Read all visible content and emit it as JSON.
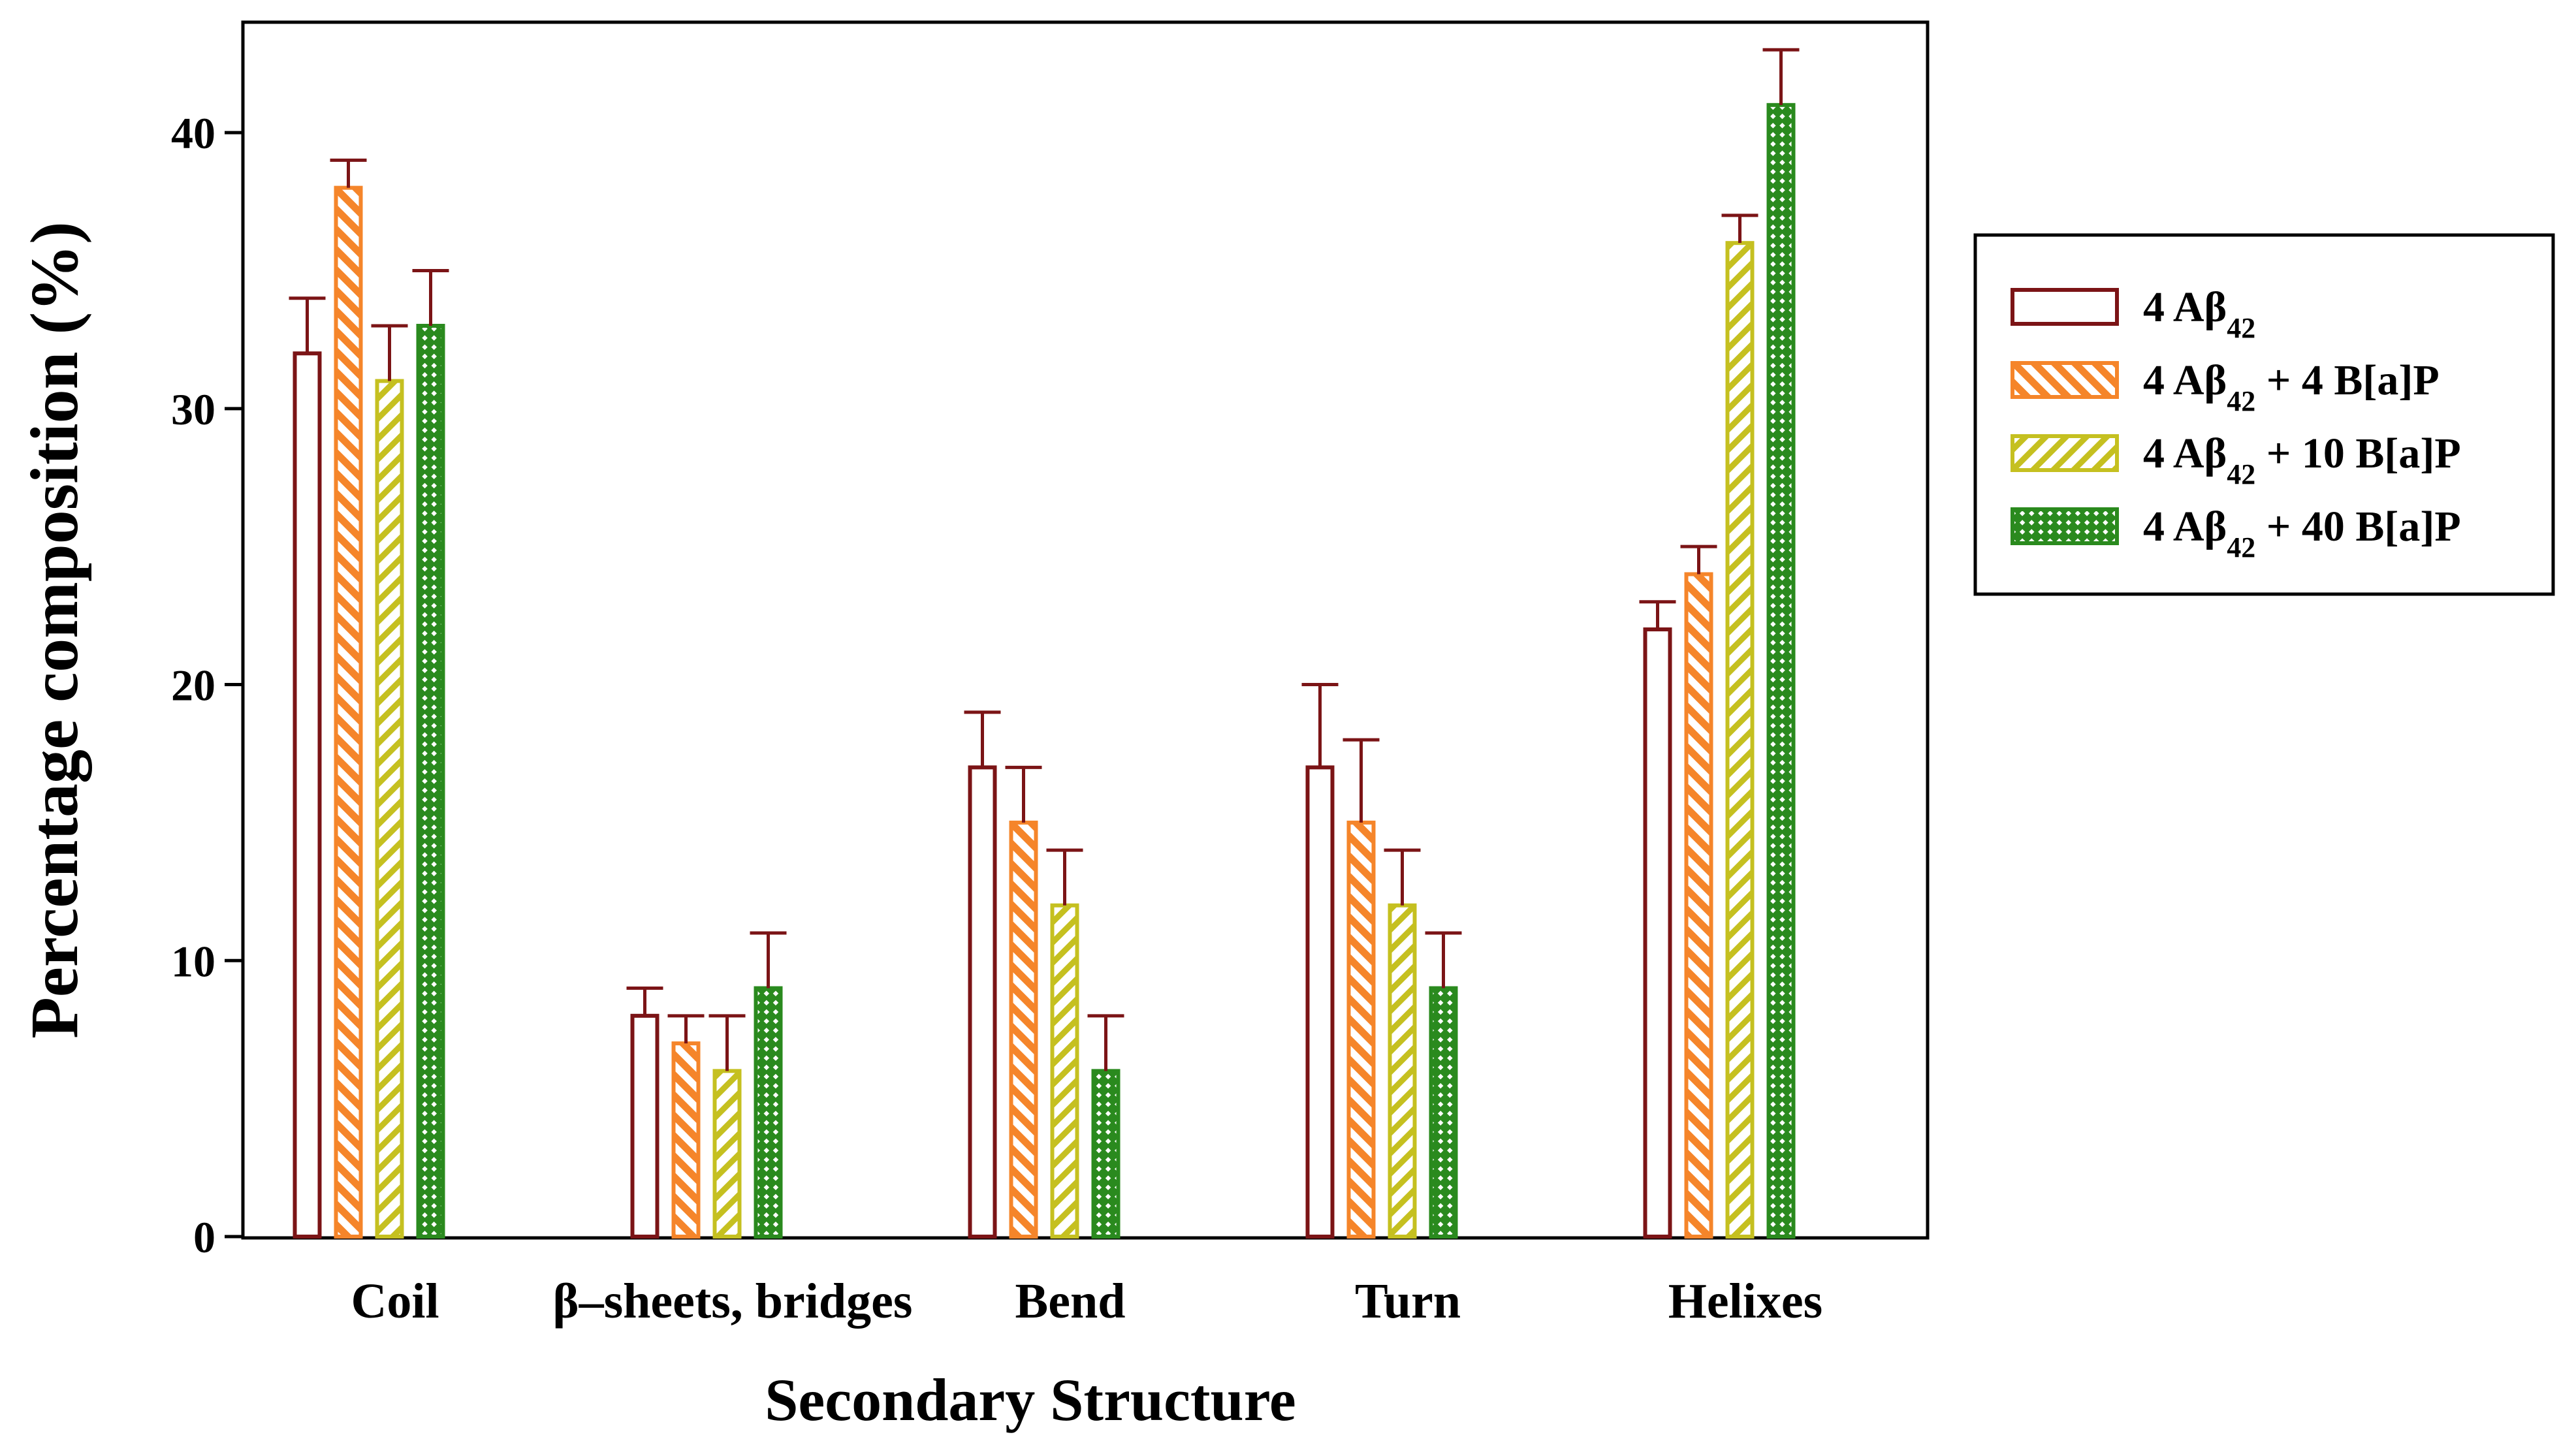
{
  "chart_data": {
    "type": "bar",
    "title": "",
    "xlabel": "Secondary Structure",
    "ylabel": "Percentage composition (%)",
    "ylim": [
      0,
      44
    ],
    "yticks": [
      0,
      10,
      20,
      30,
      40
    ],
    "categories": [
      "Coil",
      "β–sheets, bridges",
      "Bend",
      "Turn",
      "Helixes"
    ],
    "legend_position": "right",
    "series": [
      {
        "name": "4 Aβ42",
        "label_main": "4 Aβ",
        "label_sub": "42",
        "label_rest": "",
        "color": "#7b1416",
        "pattern": "hollow",
        "values": [
          32,
          8,
          17,
          17,
          22
        ],
        "errors": [
          2,
          1,
          2,
          3,
          1
        ]
      },
      {
        "name": "4 Aβ42 + 4 B[a]P",
        "label_main": "4 Aβ",
        "label_sub": "42",
        "label_rest": " + 4 B[a]P",
        "color": "#f5852a",
        "pattern": "diagonal-up",
        "values": [
          38,
          7,
          15,
          15,
          24
        ],
        "errors": [
          1,
          1,
          2,
          3,
          1
        ]
      },
      {
        "name": "4 Aβ42 + 10 B[a]P",
        "label_main": "4 Aβ",
        "label_sub": "42",
        "label_rest": " + 10 B[a]P",
        "color": "#c5c020",
        "pattern": "diagonal-down",
        "values": [
          31,
          6,
          12,
          12,
          36
        ],
        "errors": [
          2,
          2,
          2,
          2,
          1
        ]
      },
      {
        "name": "4 Aβ42 + 40 B[a]P",
        "label_main": "4 Aβ",
        "label_sub": "42",
        "label_rest": " + 40 B[a]P",
        "color": "#2a8a1e",
        "pattern": "checker",
        "values": [
          33,
          9,
          6,
          9,
          41
        ],
        "errors": [
          2,
          2,
          2,
          2,
          2
        ]
      }
    ],
    "error_bar_color": "#7b1416"
  }
}
